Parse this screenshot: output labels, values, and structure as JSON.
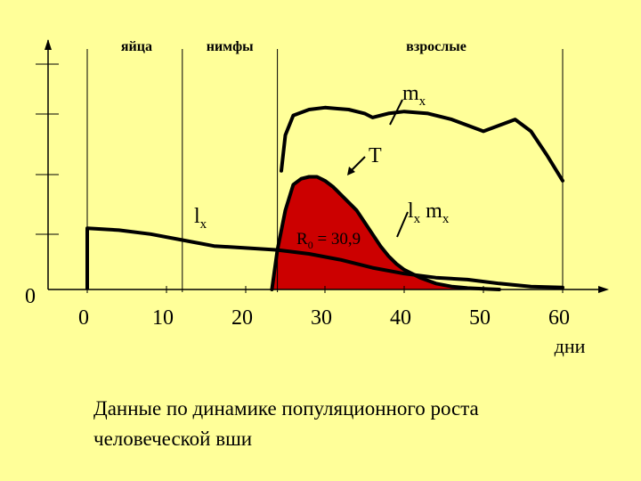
{
  "chart_data": {
    "type": "line",
    "y_origin_label": "0",
    "x_ticks": [
      "0",
      "10",
      "20",
      "30",
      "40",
      "50",
      "60"
    ],
    "x_unit": "дни",
    "xlim": [
      0,
      60
    ],
    "stage_labels": [
      {
        "text": "яйца"
      },
      {
        "text": "нимфы"
      },
      {
        "text": "взрослые"
      }
    ],
    "stage_boundaries": [
      0,
      12,
      24,
      60
    ],
    "series": [
      {
        "name": "m",
        "sub": "x",
        "x": [
          24.5,
          25,
          26,
          28,
          30,
          33,
          35,
          36,
          38,
          40,
          43,
          46,
          48,
          50,
          52,
          54,
          56,
          58,
          60
        ],
        "y": [
          0.6,
          0.78,
          0.88,
          0.91,
          0.92,
          0.91,
          0.89,
          0.87,
          0.89,
          0.9,
          0.89,
          0.86,
          0.83,
          0.8,
          0.83,
          0.86,
          0.8,
          0.68,
          0.55
        ]
      },
      {
        "name": "l",
        "sub": "x",
        "x": [
          0,
          4,
          8,
          12,
          16,
          20,
          24,
          28,
          32,
          36,
          40,
          44,
          48,
          52,
          56,
          60
        ],
        "y": [
          0.31,
          0.3,
          0.28,
          0.25,
          0.22,
          0.21,
          0.2,
          0.18,
          0.15,
          0.11,
          0.08,
          0.06,
          0.05,
          0.03,
          0.015,
          0.01
        ]
      },
      {
        "name": "l",
        "sub": "x",
        "suffix": " m",
        "suffix_sub": "x",
        "x": [
          23.3,
          24,
          25,
          26,
          27,
          28,
          29,
          30,
          31,
          32,
          33,
          34,
          35,
          36,
          37,
          38,
          39,
          40,
          42,
          44,
          46,
          48,
          50,
          52
        ],
        "y": [
          0,
          0.2,
          0.4,
          0.53,
          0.56,
          0.57,
          0.57,
          0.55,
          0.52,
          0.48,
          0.44,
          0.4,
          0.34,
          0.28,
          0.22,
          0.17,
          0.13,
          0.1,
          0.06,
          0.03,
          0.015,
          0.007,
          0.003,
          0
        ]
      }
    ],
    "annotations": [
      {
        "text": "T"
      },
      {
        "text": "R",
        "sub": "0",
        "suffix": " = 30,9"
      }
    ],
    "fill_color": "#CC0000",
    "line_color": "#000000",
    "background": "#FFFF99"
  },
  "caption": {
    "line1": "Данные по динамике популяционного роста",
    "line2": "человеческой вши"
  }
}
